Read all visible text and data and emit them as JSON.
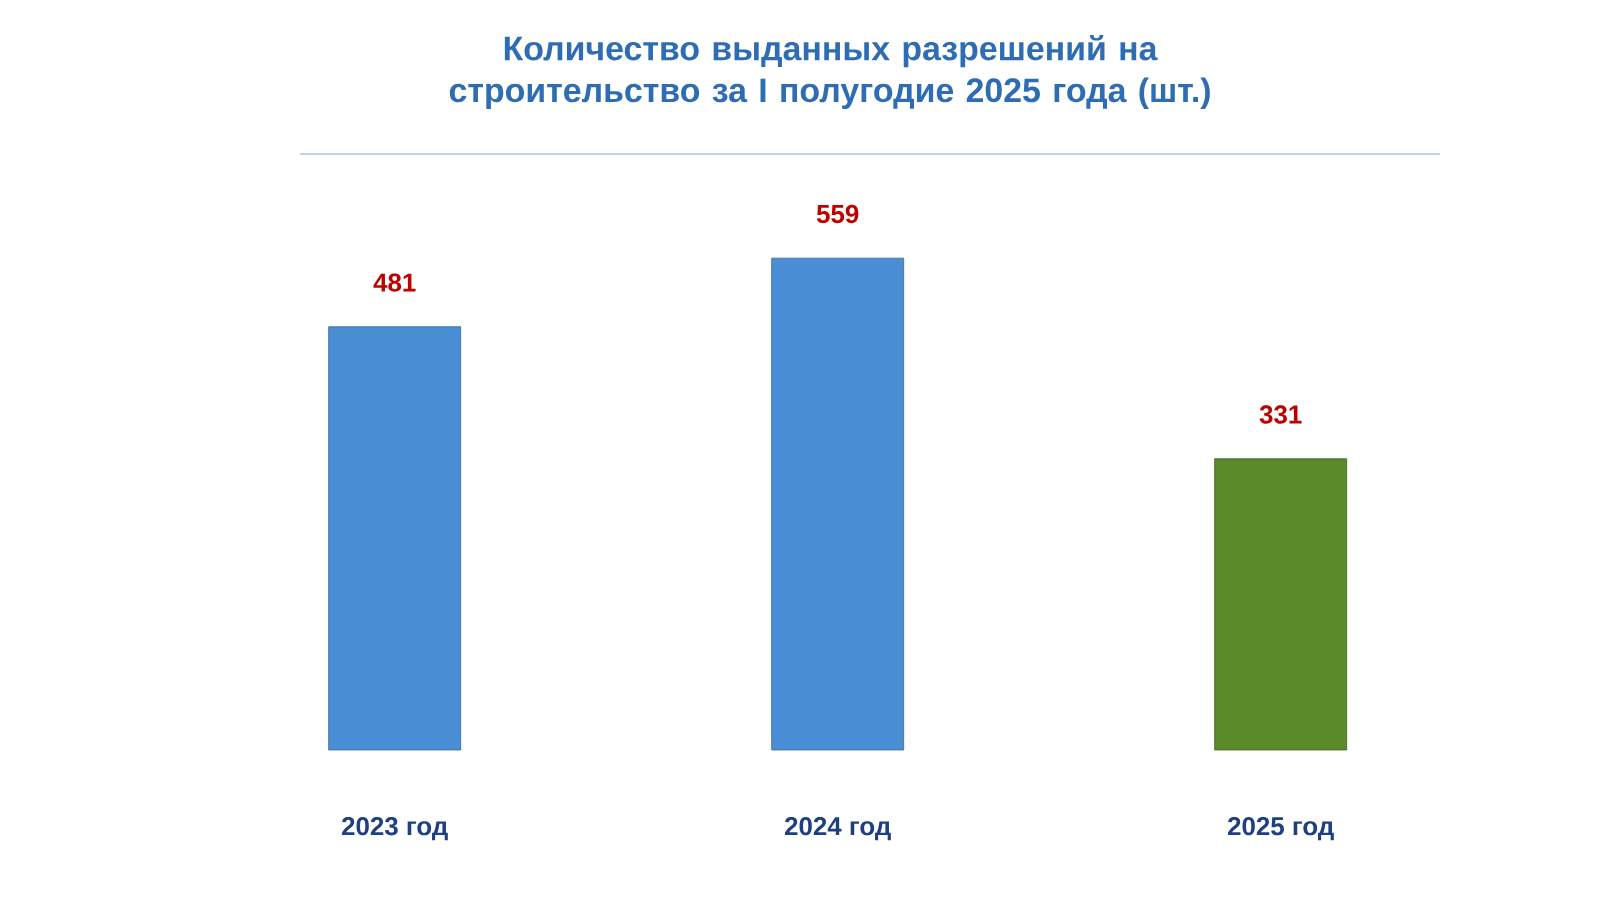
{
  "chart_data": {
    "type": "bar",
    "title": "Количество выданных разрешений на строительство за I полугодие 2025 года (шт.)",
    "categories": [
      "2023 год",
      "2024 год",
      "2025 год"
    ],
    "values": [
      481,
      559,
      331
    ],
    "colors": [
      "#4a8fd6",
      "#4a8fd6",
      "#5a8a2a"
    ],
    "data_labels": true
  }
}
